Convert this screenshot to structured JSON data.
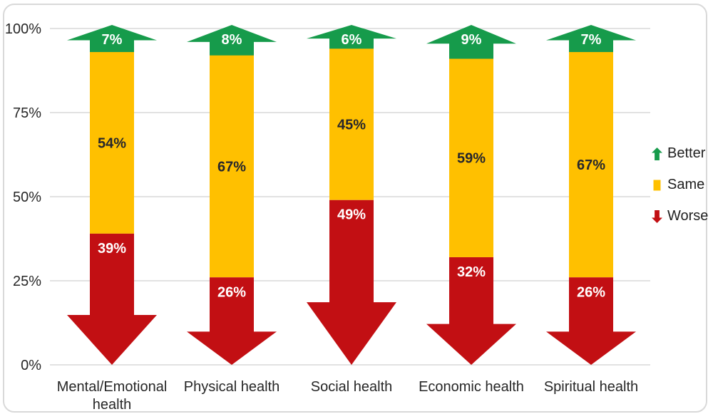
{
  "chart_data": {
    "type": "bar",
    "stacked": true,
    "orientation": "vertical",
    "title": "",
    "xlabel": "",
    "ylabel": "",
    "value_suffix": "%",
    "categories": [
      "Mental/Emotional health",
      "Physical health",
      "Social health",
      "Economic health",
      "Spiritual health"
    ],
    "category_label_lines": [
      [
        "Mental/Emotional",
        "health"
      ],
      [
        "Physical health"
      ],
      [
        "Social health"
      ],
      [
        "Economic health"
      ],
      [
        "Spiritual health"
      ]
    ],
    "series": [
      {
        "name": "Better",
        "shape": "up-arrow",
        "color": "#169B4B",
        "label_color": "#ffffff",
        "values": [
          7,
          8,
          6,
          9,
          7
        ]
      },
      {
        "name": "Same",
        "shape": "rect",
        "color": "#FFC000",
        "label_color": "#26262c",
        "values": [
          54,
          67,
          45,
          59,
          67
        ]
      },
      {
        "name": "Worse",
        "shape": "down-arrow",
        "color": "#C20F13",
        "label_color": "#ffffff",
        "values": [
          39,
          26,
          49,
          32,
          26
        ]
      }
    ],
    "y_axis": {
      "min": 0,
      "max": 100,
      "tick_values": [
        0,
        25,
        50,
        75,
        100
      ],
      "tick_labels": [
        "0%",
        "25%",
        "50%",
        "75%",
        "100%"
      ],
      "gridlines": true,
      "gridline_color": "#d9d9d9",
      "tick_text_color": "#262626"
    },
    "x_axis": {
      "label_color": "#262626"
    },
    "legend": {
      "position": "right",
      "items": [
        {
          "label": "Better",
          "color": "#169B4B",
          "icon": "up-arrow-icon"
        },
        {
          "label": "Same",
          "color": "#FFC000",
          "icon": "square-icon"
        },
        {
          "label": "Worse",
          "color": "#C20F13",
          "icon": "down-arrow-icon"
        }
      ]
    }
  }
}
